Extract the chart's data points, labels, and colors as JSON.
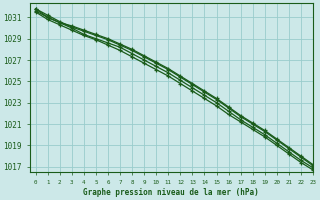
{
  "title": "Graphe pression niveau de la mer (hPa)",
  "background_color": "#cce8e8",
  "grid_color": "#99cccc",
  "line_color": "#1a5c1a",
  "text_color": "#1a5c1a",
  "xlim": [
    -0.5,
    23
  ],
  "ylim": [
    1016.5,
    1032.3
  ],
  "yticks": [
    1017,
    1019,
    1021,
    1023,
    1025,
    1027,
    1029,
    1031
  ],
  "xticks": [
    0,
    1,
    2,
    3,
    4,
    5,
    6,
    7,
    8,
    9,
    10,
    11,
    12,
    13,
    14,
    15,
    16,
    17,
    18,
    19,
    20,
    21,
    22,
    23
  ],
  "hours": [
    0,
    1,
    2,
    3,
    4,
    5,
    6,
    7,
    8,
    9,
    10,
    11,
    12,
    13,
    14,
    15,
    16,
    17,
    18,
    19,
    20,
    21,
    22,
    23
  ],
  "series": [
    [
      1031.8,
      1031.0,
      1030.5,
      1030.2,
      1029.8,
      1029.4,
      1029.0,
      1028.5,
      1028.0,
      1027.4,
      1026.8,
      1026.2,
      1025.5,
      1024.8,
      1024.1,
      1023.4,
      1022.6,
      1021.8,
      1021.1,
      1020.4,
      1019.6,
      1018.8,
      1018.0,
      1017.2
    ],
    [
      1031.8,
      1031.2,
      1030.6,
      1030.1,
      1029.7,
      1029.3,
      1028.9,
      1028.4,
      1027.9,
      1027.3,
      1026.7,
      1026.1,
      1025.4,
      1024.7,
      1024.0,
      1023.3,
      1022.5,
      1021.7,
      1021.0,
      1020.3,
      1019.5,
      1018.7,
      1017.9,
      1017.1
    ],
    [
      1031.6,
      1031.0,
      1030.5,
      1030.0,
      1029.4,
      1029.0,
      1028.6,
      1028.2,
      1027.6,
      1027.0,
      1026.4,
      1025.8,
      1025.1,
      1024.4,
      1023.7,
      1023.0,
      1022.2,
      1021.4,
      1020.7,
      1020.0,
      1019.2,
      1018.4,
      1017.6,
      1016.9
    ],
    [
      1031.5,
      1030.8,
      1030.3,
      1029.8,
      1029.3,
      1028.9,
      1028.4,
      1027.9,
      1027.3,
      1026.7,
      1026.1,
      1025.5,
      1024.8,
      1024.1,
      1023.4,
      1022.7,
      1021.9,
      1021.2,
      1020.5,
      1019.8,
      1019.0,
      1018.2,
      1017.4,
      1016.7
    ]
  ],
  "figsize": [
    3.2,
    2.0
  ],
  "dpi": 100,
  "xlabel_fontsize": 5.5,
  "ytick_fontsize": 5.5,
  "xtick_fontsize": 4.2,
  "linewidth": 0.9,
  "markersize": 3.5,
  "marker": "+"
}
